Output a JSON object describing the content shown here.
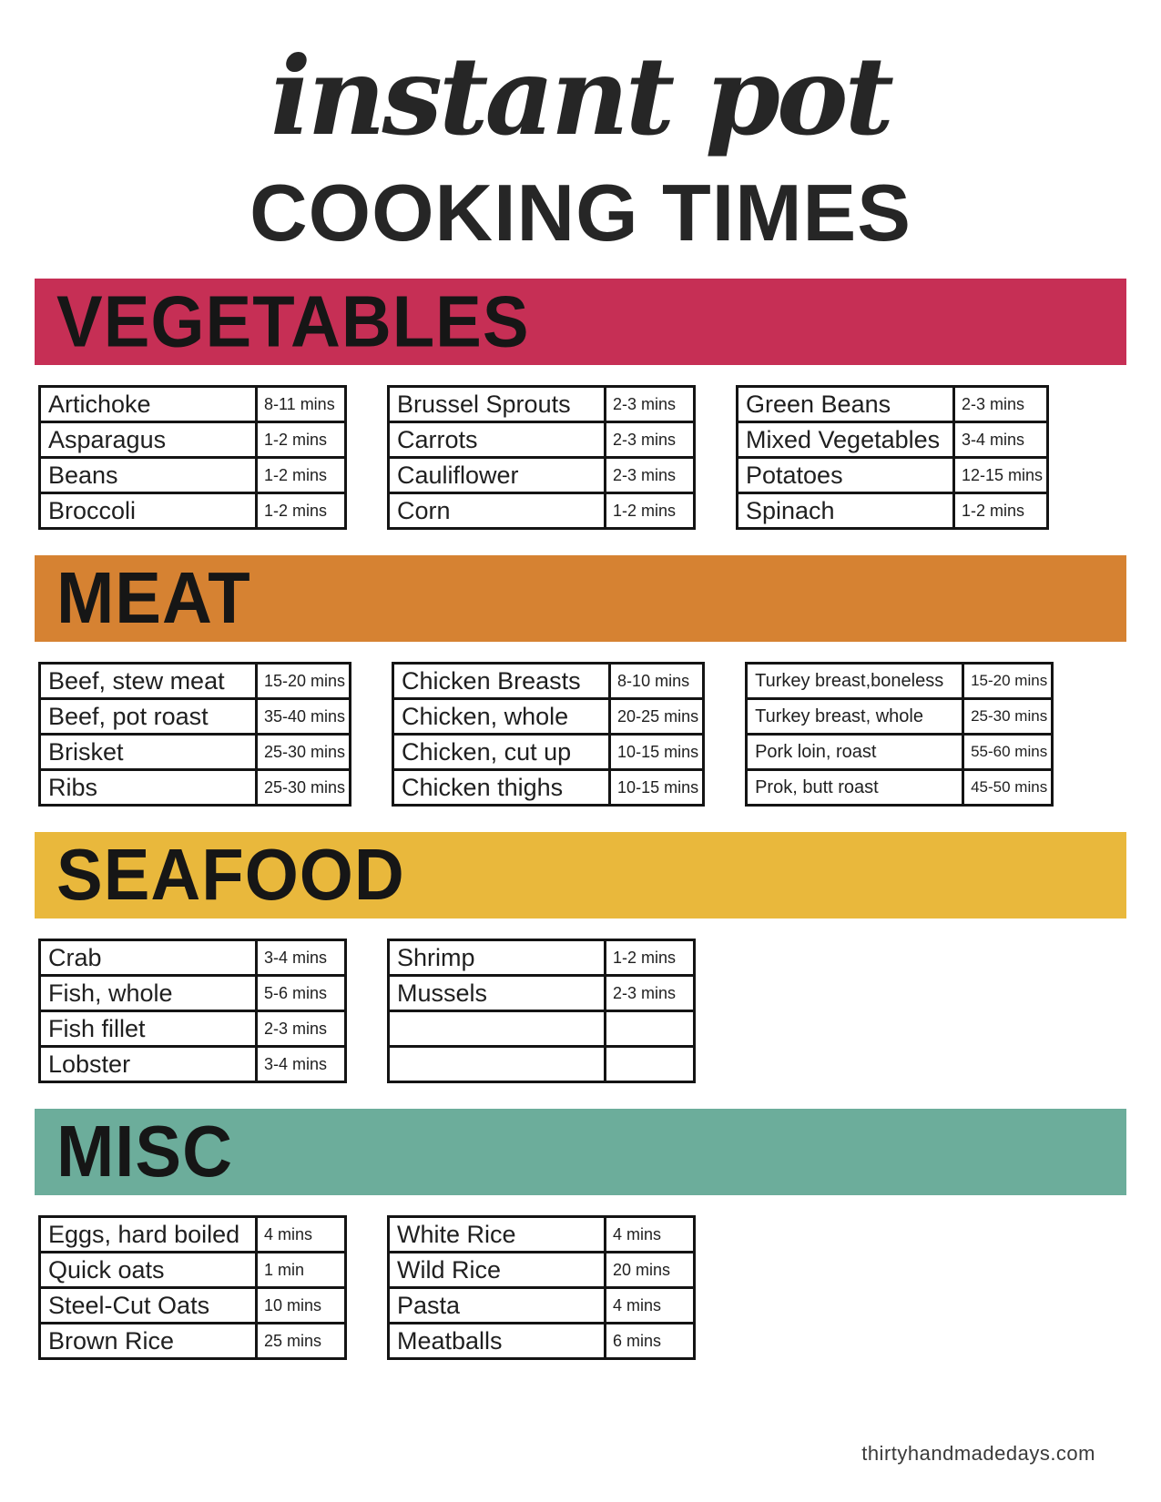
{
  "title": {
    "script": "instant pot",
    "caps": "COOKING TIMES"
  },
  "sections": [
    {
      "name": "VEGETABLES",
      "color": "#c62f55",
      "tables": [
        {
          "rows": [
            [
              "Artichoke",
              "8-11 mins"
            ],
            [
              "Asparagus",
              "1-2 mins"
            ],
            [
              "Beans",
              "1-2 mins"
            ],
            [
              "Broccoli",
              "1-2 mins"
            ]
          ]
        },
        {
          "rows": [
            [
              "Brussel Sprouts",
              "2-3 mins"
            ],
            [
              "Carrots",
              "2-3 mins"
            ],
            [
              "Cauliflower",
              "2-3 mins"
            ],
            [
              "Corn",
              "1-2 mins"
            ]
          ]
        },
        {
          "rows": [
            [
              "Green Beans",
              "2-3 mins"
            ],
            [
              "Mixed Vegetables",
              "3-4 mins"
            ],
            [
              "Potatoes",
              "12-15 mins"
            ],
            [
              "Spinach",
              "1-2 mins"
            ]
          ]
        }
      ]
    },
    {
      "name": "MEAT",
      "color": "#d68232",
      "tables": [
        {
          "rows": [
            [
              "Beef, stew meat",
              "15-20 mins"
            ],
            [
              "Beef, pot roast",
              "35-40 mins"
            ],
            [
              "Brisket",
              "25-30 mins"
            ],
            [
              "Ribs",
              "25-30 mins"
            ]
          ]
        },
        {
          "rows": [
            [
              "Chicken Breasts",
              "8-10 mins"
            ],
            [
              "Chicken, whole",
              "20-25 mins"
            ],
            [
              "Chicken, cut up",
              "10-15 mins"
            ],
            [
              "Chicken thighs",
              "10-15 mins"
            ]
          ]
        },
        {
          "compact": true,
          "rows": [
            [
              "Turkey breast,boneless",
              "15-20 mins"
            ],
            [
              "Turkey breast, whole",
              "25-30 mins"
            ],
            [
              "Pork loin, roast",
              "55-60 mins"
            ],
            [
              "Prok, butt roast",
              "45-50 mins"
            ]
          ]
        }
      ]
    },
    {
      "name": "SEAFOOD",
      "color": "#e9b83c",
      "tables": [
        {
          "rows": [
            [
              "Crab",
              "3-4 mins"
            ],
            [
              "Fish, whole",
              "5-6 mins"
            ],
            [
              "Fish fillet",
              "2-3 mins"
            ],
            [
              "Lobster",
              "3-4 mins"
            ]
          ]
        },
        {
          "rows": [
            [
              "Shrimp",
              "1-2 mins"
            ],
            [
              "Mussels",
              "2-3 mins"
            ],
            [
              "",
              ""
            ],
            [
              "",
              ""
            ]
          ]
        }
      ]
    },
    {
      "name": "MISC",
      "color": "#6cad9b",
      "tables": [
        {
          "rows": [
            [
              "Eggs, hard boiled",
              "4 mins"
            ],
            [
              "Quick oats",
              "1 min"
            ],
            [
              "Steel-Cut Oats",
              "10 mins"
            ],
            [
              "Brown Rice",
              "25 mins"
            ]
          ]
        },
        {
          "rows": [
            [
              "White Rice",
              "4 mins"
            ],
            [
              "Wild Rice",
              "20 mins"
            ],
            [
              "Pasta",
              "4 mins"
            ],
            [
              "Meatballs",
              "6 mins"
            ]
          ]
        }
      ]
    }
  ],
  "footer": "thirtyhandmadedays.com"
}
